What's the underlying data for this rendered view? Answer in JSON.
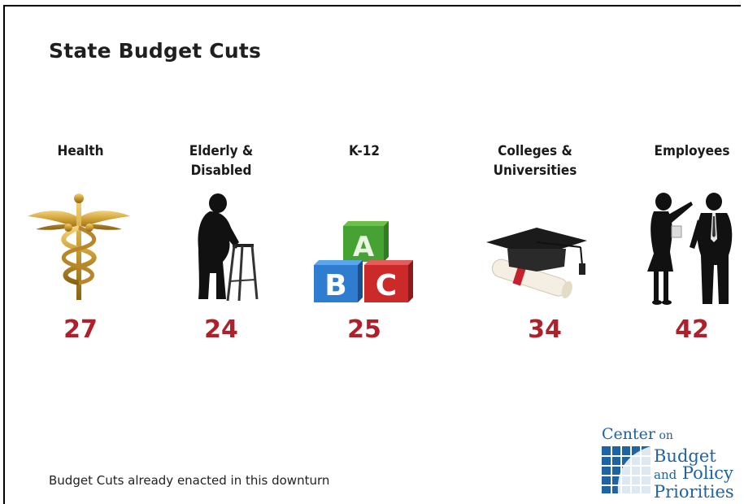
{
  "slide": {
    "title": "State Budget Cuts",
    "footer": "Budget Cuts already enacted in this downturn"
  },
  "categories": [
    {
      "label_line1": "Health",
      "label_line2": "",
      "value": "27",
      "icon": "caduceus-icon"
    },
    {
      "label_line1": "Elderly &",
      "label_line2": "Disabled",
      "value": "24",
      "icon": "elderly-walker-icon"
    },
    {
      "label_line1": "K-12",
      "label_line2": "",
      "value": "25",
      "icon": "abc-blocks-icon"
    },
    {
      "label_line1": "Colleges &",
      "label_line2": "Universities",
      "value": "34",
      "icon": "graduation-cap-icon"
    },
    {
      "label_line1": "Employees",
      "label_line2": "",
      "value": "42",
      "icon": "employees-silhouette-icon"
    }
  ],
  "logo": {
    "line1": "Center",
    "line1_small": "on",
    "line2": "Budget",
    "line3_small": "and",
    "line3": "Policy",
    "line4": "Priorities",
    "color": "#1e63a3"
  },
  "colors": {
    "value": "#b0202a",
    "text": "#1a1a1a"
  }
}
